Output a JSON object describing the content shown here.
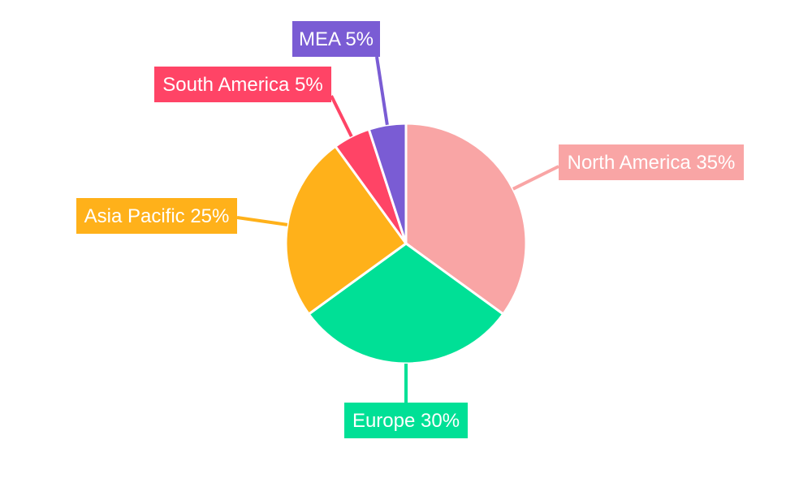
{
  "chart_data": {
    "type": "pie",
    "start_angle": "top",
    "direction": "clockwise",
    "slices": [
      {
        "label": "North America 35%",
        "name": "North America",
        "value": 35,
        "color": "#F9A5A5"
      },
      {
        "label": "Europe 30%",
        "name": "Europe",
        "value": 30,
        "color": "#00E096"
      },
      {
        "label": "Asia Pacific 25%",
        "name": "Asia Pacific",
        "value": 25,
        "color": "#FFB11A"
      },
      {
        "label": "South America 5%",
        "name": "South America",
        "value": 5,
        "color": "#FF4466"
      },
      {
        "label": "MEA 5%",
        "name": "MEA",
        "value": 5,
        "color": "#7A5CD4"
      }
    ]
  }
}
